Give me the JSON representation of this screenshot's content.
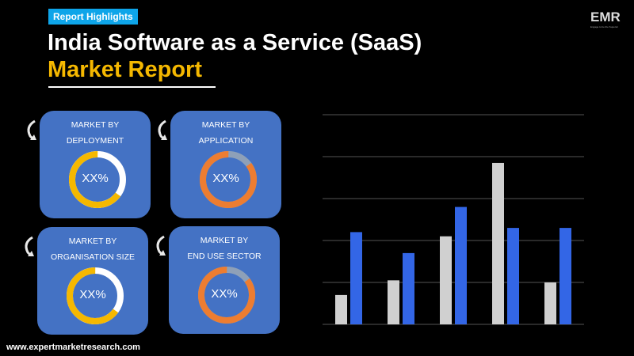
{
  "header": {
    "badge": "Report Highlights",
    "title_line1": "India Software as a Service (SaaS)",
    "title_line2": "Market Report"
  },
  "logo": {
    "text": "EMR",
    "tagline": "Engage to be the Superior"
  },
  "cards": [
    {
      "line1": "MARKET BY",
      "line2": "DEPLOYMENT",
      "value": "XX%",
      "fill_fraction": 0.65,
      "color": "#f5b800",
      "track": "#ffffff"
    },
    {
      "line1": "MARKET BY",
      "line2": "APPLICATION",
      "value": "XX%",
      "fill_fraction": 0.85,
      "color": "#ed7d31",
      "track": "#8ea0b8"
    },
    {
      "line1": "MARKET BY",
      "line2": "ORGANISATION SIZE",
      "value": "XX%",
      "fill_fraction": 0.65,
      "color": "#f5b800",
      "track": "#ffffff"
    },
    {
      "line1": "MARKET BY",
      "line2": "END USE SECTOR",
      "value": "XX%",
      "fill_fraction": 0.85,
      "color": "#ed7d31",
      "track": "#8ea0b8"
    }
  ],
  "footer": {
    "website": "www.expertmarketresearch.com"
  },
  "chart_data": {
    "type": "bar",
    "categories": [
      "1",
      "2",
      "3",
      "4",
      "5"
    ],
    "series": [
      {
        "values": [
          0.7,
          1.05,
          2.1,
          3.85,
          1.0
        ],
        "color": "#d0d0d0"
      },
      {
        "values": [
          2.2,
          1.7,
          2.8,
          2.3,
          2.3
        ],
        "color": "#3366e6"
      }
    ],
    "ylim": [
      0,
      5
    ],
    "grid": true,
    "tick_labels_shown": false
  }
}
